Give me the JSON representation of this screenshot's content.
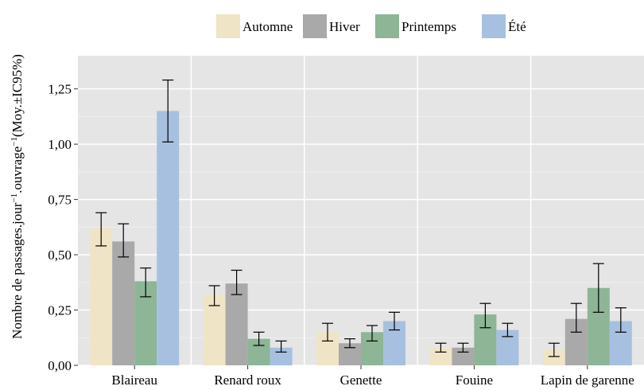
{
  "chart_data": {
    "type": "bar",
    "title": "",
    "xlabel": "",
    "ylabel": "Nombre de passages.jour⁻¹.ouvrage⁻¹(Moy.±IC95%)",
    "ylabel_parts": [
      "Nombre de passages.jour",
      "−1",
      ".ouvrage",
      "−1",
      "(Moy.±IC95%)"
    ],
    "ylim": [
      0,
      1.4
    ],
    "yticks": [
      0,
      0.25,
      0.5,
      0.75,
      1.0,
      1.25
    ],
    "ytick_labels": [
      "0,00",
      "0,25",
      "0,50",
      "0,75",
      "1,00",
      "1,25"
    ],
    "categories": [
      "Blaireau",
      "Renard roux",
      "Genette",
      "Fouine",
      "Lapin de garenne"
    ],
    "legend_position": "top",
    "grid": true,
    "series": [
      {
        "name": "Automne",
        "color": "#efe4c6",
        "values": [
          0.62,
          0.32,
          0.15,
          0.08,
          0.07
        ],
        "err_low": [
          0.54,
          0.27,
          0.11,
          0.06,
          0.04
        ],
        "err_high": [
          0.69,
          0.36,
          0.19,
          0.1,
          0.1
        ]
      },
      {
        "name": "Hiver",
        "color": "#a9a9a9",
        "values": [
          0.56,
          0.37,
          0.1,
          0.08,
          0.21
        ],
        "err_low": [
          0.49,
          0.32,
          0.08,
          0.06,
          0.15
        ],
        "err_high": [
          0.64,
          0.43,
          0.12,
          0.1,
          0.28
        ]
      },
      {
        "name": "Printemps",
        "color": "#8db596",
        "values": [
          0.38,
          0.12,
          0.15,
          0.23,
          0.35
        ],
        "err_low": [
          0.31,
          0.09,
          0.11,
          0.17,
          0.24
        ],
        "err_high": [
          0.44,
          0.15,
          0.18,
          0.28,
          0.46
        ]
      },
      {
        "name": "Été",
        "color": "#a7c0df",
        "values": [
          1.15,
          0.08,
          0.2,
          0.16,
          0.2
        ],
        "err_low": [
          1.01,
          0.06,
          0.16,
          0.13,
          0.15
        ],
        "err_high": [
          1.29,
          0.11,
          0.24,
          0.19,
          0.26
        ]
      }
    ]
  }
}
